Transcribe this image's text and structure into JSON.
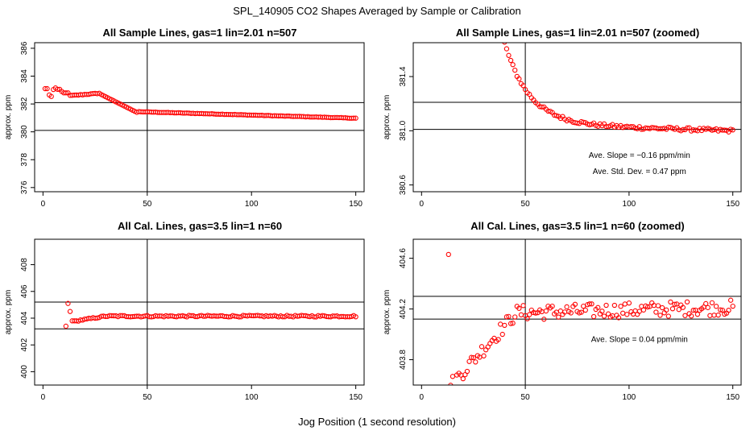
{
  "figure": {
    "title": "SPL_140905  CO2 Shapes Averaged by Sample or Calibration",
    "xlabel": "Jog Position (1 second resolution)"
  },
  "colors": {
    "points": "#ff0000",
    "lines": "#000000"
  },
  "chart_data": [
    {
      "id": "p1",
      "type": "scatter",
      "title": "All Sample Lines, gas=1 lin=2.01 n=507",
      "xlabel": "",
      "ylabel": "approx. ppm",
      "xlim": [
        -4,
        154
      ],
      "ylim": [
        375.7,
        386.4
      ],
      "xticks": [
        0,
        50,
        100,
        150
      ],
      "yticks": [
        376,
        378,
        380,
        382,
        384,
        386
      ],
      "vline": 50,
      "hlines": [
        382.1,
        380.1
      ],
      "annotations": [],
      "series": [
        {
          "name": "sample",
          "x": [],
          "y": []
        }
      ]
    },
    {
      "id": "p2",
      "type": "scatter",
      "title": "All Sample Lines, gas=1 lin=2.01 n=507 (zoomed)",
      "xlabel": "",
      "ylabel": "approx. ppm",
      "xlim": [
        -4,
        154
      ],
      "ylim": [
        380.55,
        381.65
      ],
      "xticks": [
        0,
        50,
        100,
        150
      ],
      "yticks": [
        380.6,
        381.0,
        381.4
      ],
      "vline": 50,
      "hlines": [
        381.21,
        381.01
      ],
      "annotations": [
        {
          "text": "Ave. Slope =  −0.16  ppm/min",
          "x": 105,
          "y": 380.8
        },
        {
          "text": "Ave. Std. Dev. =  0.47  ppm",
          "x": 105,
          "y": 380.68
        }
      ],
      "series": [
        {
          "name": "sample",
          "x": [],
          "y": []
        }
      ]
    },
    {
      "id": "p3",
      "type": "scatter",
      "title": "All Cal. Lines, gas=3.5 lin=1 n=60",
      "xlabel": "",
      "ylabel": "approx. ppm",
      "xlim": [
        -4,
        154
      ],
      "ylim": [
        399.0,
        409.9
      ],
      "xticks": [
        0,
        50,
        100,
        150
      ],
      "yticks": [
        400,
        402,
        404,
        406,
        408
      ],
      "vline": 50,
      "hlines": [
        405.2,
        403.2
      ],
      "annotations": [],
      "series": [
        {
          "name": "cal",
          "x": [],
          "y": []
        }
      ]
    },
    {
      "id": "p4",
      "type": "scatter",
      "title": "All Cal. Lines, gas=3.5 lin=1 n=60 (zoomed)",
      "xlabel": "",
      "ylabel": "approx. ppm",
      "xlim": [
        -4,
        154
      ],
      "ylim": [
        403.6,
        404.75
      ],
      "xticks": [
        0,
        50,
        100,
        150
      ],
      "yticks": [
        403.8,
        404.2,
        404.6
      ],
      "vline": 50,
      "hlines": [
        404.3,
        404.12
      ],
      "annotations": [
        {
          "text": "Ave. Slope =  0.04  ppm/min",
          "x": 105,
          "y": 403.94
        }
      ],
      "series": [
        {
          "name": "cal",
          "x": [],
          "y": []
        }
      ]
    }
  ]
}
